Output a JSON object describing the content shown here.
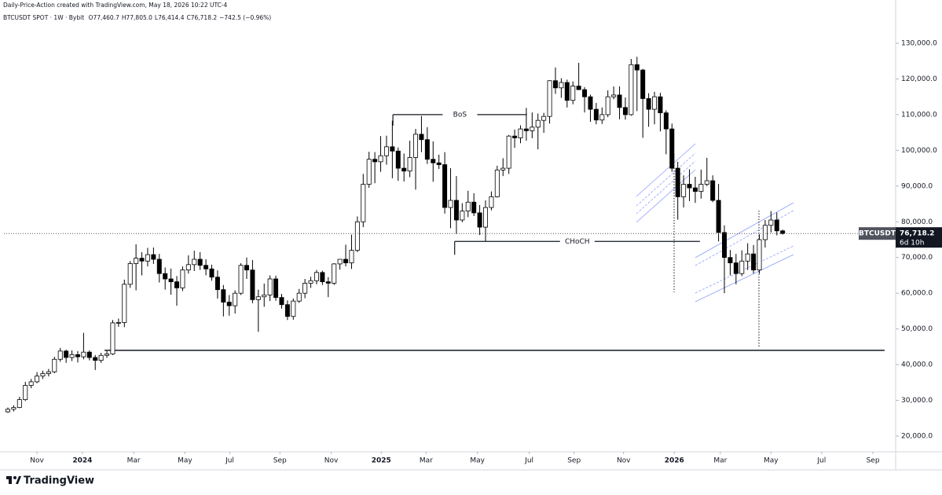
{
  "header": {
    "title": "Daily-Price-Action created with TradingView.com, May 18, 2026 10:22 UTC-4",
    "symbol_info": "BTCUSDT SPOT · 1W · Bybit",
    "ohlc": [
      "O77,460.7",
      "H77,805.0",
      "L76,414.4",
      "C76,718.2",
      "−742.5 (−0.96%)"
    ]
  },
  "chart_data": {
    "type": "candlestick",
    "series": [
      {
        "name": "BTCUSDT",
        "open": [
          26800,
          27500,
          28000,
          30200,
          34200,
          35200,
          36800,
          37500,
          38000,
          41500,
          43800,
          42000,
          42800,
          42200,
          43500,
          42000,
          41200,
          42600,
          43000,
          51700,
          51800,
          62500,
          68300,
          69800,
          69000,
          70800,
          69500,
          65500,
          64000,
          63200,
          61500,
          66500,
          68000,
          69500,
          67800,
          66800,
          64500,
          61000,
          57500,
          56500,
          60000,
          67800,
          66500,
          58200,
          59000,
          59500,
          64000,
          58800,
          56800,
          53500,
          57800,
          60000,
          62800,
          63500,
          65800,
          63200,
          62800,
          68200,
          69500,
          68500,
          72000,
          80000,
          90500,
          97500,
          96800,
          98500,
          101000,
          99800,
          95000,
          94200,
          98000,
          104500,
          103000,
          97500,
          96500,
          96000,
          84000,
          86000,
          80500,
          83000,
          85500,
          82500,
          78500,
          84000,
          87000,
          94500,
          95000,
          104000,
          103500,
          106000,
          105500,
          106500,
          108400,
          109500,
          119500,
          117500,
          119000,
          114000,
          118000,
          117000,
          115000,
          111500,
          108500,
          110000,
          115000,
          115500,
          112000,
          110000,
          124000,
          122500,
          114500,
          111500,
          115000,
          110500,
          106000,
          95000,
          87000,
          90500,
          89500,
          88500,
          90500,
          91500,
          86000,
          77000,
          70000,
          68500,
          65500,
          69000,
          71000,
          66500,
          75000,
          79000,
          80500,
          77460.7
        ],
        "high": [
          28000,
          28600,
          31000,
          35200,
          36000,
          37900,
          38300,
          38800,
          42200,
          44700,
          44200,
          44000,
          43800,
          48900,
          44000,
          42700,
          43300,
          43800,
          52500,
          52900,
          63800,
          69000,
          73700,
          71500,
          72700,
          72800,
          71000,
          67200,
          66900,
          64800,
          67500,
          70600,
          71900,
          71500,
          69500,
          68000,
          66400,
          62300,
          59500,
          60800,
          68400,
          70000,
          69300,
          61000,
          62700,
          65000,
          64900,
          59800,
          58000,
          58500,
          61200,
          64000,
          64600,
          66500,
          66300,
          64500,
          68400,
          69500,
          73600,
          76400,
          81500,
          93400,
          99600,
          99500,
          104000,
          104100,
          108300,
          100800,
          99100,
          102700,
          106000,
          109600,
          106500,
          102500,
          98800,
          99500,
          95000,
          92800,
          85200,
          88700,
          88000,
          84700,
          86000,
          88500,
          95700,
          97800,
          104300,
          105800,
          107000,
          111900,
          110600,
          110300,
          110500,
          119600,
          123200,
          120200,
          119800,
          119300,
          124500,
          117700,
          115600,
          113300,
          112000,
          116800,
          117900,
          117900,
          114800,
          125600,
          126200,
          122800,
          116000,
          116400,
          116100,
          111200,
          107500,
          96800,
          93000,
          94700,
          92600,
          94600,
          97900,
          93000,
          90600,
          79000,
          72100,
          71000,
          72000,
          74000,
          73500,
          76500,
          80500,
          83000,
          82600,
          77805.0
        ],
        "low": [
          26500,
          26900,
          27800,
          29800,
          33400,
          34800,
          36000,
          36700,
          37600,
          40800,
          40500,
          41000,
          40600,
          41500,
          41200,
          38500,
          40500,
          41900,
          42700,
          50600,
          50500,
          61500,
          60800,
          65000,
          67500,
          68200,
          63000,
          61000,
          59600,
          56500,
          60600,
          65500,
          66200,
          66500,
          65000,
          63500,
          58500,
          53500,
          53700,
          54300,
          59500,
          64000,
          57200,
          49200,
          56200,
          57800,
          57900,
          55700,
          52500,
          52600,
          57300,
          58600,
          61500,
          62500,
          62300,
          58900,
          62300,
          66600,
          67500,
          66800,
          71500,
          78500,
          89500,
          90800,
          94000,
          96000,
          92200,
          91500,
          91300,
          92500,
          89000,
          99500,
          96200,
          91200,
          94800,
          82300,
          78200,
          76600,
          79900,
          81300,
          81600,
          76300,
          74600,
          83200,
          86800,
          92800,
          93400,
          100700,
          102000,
          102700,
          103400,
          100300,
          104900,
          107500,
          115800,
          114700,
          112000,
          112900,
          116900,
          110600,
          108000,
          107300,
          107400,
          109300,
          114300,
          108700,
          108600,
          109700,
          111000,
          103500,
          106600,
          107300,
          105300,
          98900,
          94000,
          80600,
          84000,
          85800,
          85300,
          86500,
          90000,
          85500,
          74500,
          60000,
          65000,
          62500,
          64800,
          66500,
          65500,
          65500,
          72800,
          77000,
          76200,
          76414.4
        ],
        "close": [
          27500,
          28000,
          30200,
          34200,
          35200,
          36800,
          37500,
          38000,
          41500,
          43800,
          42000,
          42800,
          42200,
          43500,
          42000,
          41200,
          42600,
          43000,
          51700,
          51800,
          62500,
          68300,
          69800,
          69000,
          70800,
          69500,
          65500,
          64000,
          63200,
          61500,
          66500,
          68000,
          69500,
          67800,
          66800,
          64500,
          61000,
          57500,
          56500,
          60000,
          67800,
          66500,
          58200,
          59000,
          59500,
          64000,
          58800,
          56800,
          53500,
          57800,
          60000,
          62800,
          63500,
          65800,
          63200,
          62800,
          68200,
          69500,
          68500,
          72000,
          80000,
          90500,
          97500,
          96800,
          98500,
          101000,
          99800,
          95000,
          94200,
          98000,
          104500,
          103000,
          97500,
          96500,
          96000,
          84000,
          86000,
          80500,
          83000,
          85500,
          82500,
          78500,
          84000,
          87000,
          94500,
          95000,
          104000,
          103500,
          106000,
          105500,
          106500,
          108400,
          109500,
          119500,
          117500,
          119000,
          114000,
          118000,
          117000,
          115000,
          111500,
          108500,
          110000,
          115000,
          115500,
          112000,
          110000,
          124000,
          122500,
          114500,
          111500,
          115000,
          110500,
          106000,
          95000,
          87000,
          90500,
          89500,
          88500,
          90500,
          91500,
          86000,
          77000,
          70000,
          68500,
          65500,
          69000,
          71000,
          66500,
          75000,
          79000,
          80500,
          77460.7,
          76718.2
        ]
      }
    ],
    "up_color": "#ffffff",
    "down_color": "#000000",
    "ylim": [
      15600,
      142100
    ],
    "yticks": [
      {
        "value": 20000,
        "label": "20,000.0"
      },
      {
        "value": 30000,
        "label": "30,000.0"
      },
      {
        "value": 40000,
        "label": "40,000.0"
      },
      {
        "value": 50000,
        "label": "50,000.0"
      },
      {
        "value": 60000,
        "label": "60,000.0"
      },
      {
        "value": 70000,
        "label": "70,000.0"
      },
      {
        "value": 80000,
        "label": "80,000.0"
      },
      {
        "value": 90000,
        "label": "90,000.0"
      },
      {
        "value": 100000,
        "label": "100,000.0"
      },
      {
        "value": 110000,
        "label": "110,000.0"
      },
      {
        "value": 120000,
        "label": "120,000.0"
      },
      {
        "value": 130000,
        "label": "130,000.0"
      }
    ],
    "xlim": [
      -0.674,
      152.4
    ],
    "xticks": [
      {
        "value": 5.0,
        "label": "Nov"
      },
      {
        "value": 12.8,
        "label": "2024"
      },
      {
        "value": 21.6,
        "label": "Mar"
      },
      {
        "value": 30.4,
        "label": "May"
      },
      {
        "value": 38.1,
        "label": "Jul"
      },
      {
        "value": 46.7,
        "label": "Sep"
      },
      {
        "value": 55.5,
        "label": "Nov"
      },
      {
        "value": 64.1,
        "label": "2025"
      },
      {
        "value": 71.8,
        "label": "Mar"
      },
      {
        "value": 80.6,
        "label": "May"
      },
      {
        "value": 89.5,
        "label": "Jul"
      },
      {
        "value": 97.2,
        "label": "Sep"
      },
      {
        "value": 105.7,
        "label": "Nov"
      },
      {
        "value": 114.4,
        "label": "2026"
      },
      {
        "value": 122.3,
        "label": "Mar"
      },
      {
        "value": 131.0,
        "label": "May"
      },
      {
        "value": 139.7,
        "label": "Jul"
      },
      {
        "value": 148.5,
        "label": "Sep"
      }
    ],
    "grid": false,
    "annotations": [
      {
        "text": "BoS",
        "price": 110000
      },
      {
        "text": "CHoCH",
        "price": 74500
      }
    ],
    "hlines": [
      44000
    ],
    "last_price": {
      "value": 76718.2,
      "label": "76,718.2"
    },
    "countdown": "6d 10h"
  },
  "footer": {
    "logo": "TradingView"
  }
}
